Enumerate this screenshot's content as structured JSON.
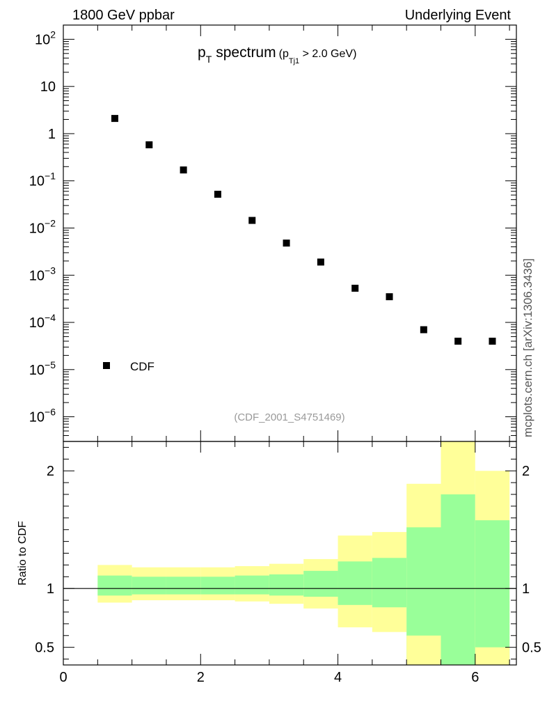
{
  "header": {
    "left": "1800 GeV ppbar",
    "right": "Underlying Event"
  },
  "side_label": "mcplots.cern.ch [arXiv:1306.3436]",
  "analysis_id": "(CDF_2001_S4751469)",
  "main_title": {
    "p": "p",
    "sub_t": "T",
    "word": "spectrum",
    "cut_open": "(p",
    "cut_sub": "Tj1",
    "cut_rest": " > 2.0 GeV)"
  },
  "chart_data": [
    {
      "type": "scatter",
      "name": "main",
      "y_scale": "log",
      "xlim": [
        0,
        6.6
      ],
      "ylim": [
        3e-07,
        200
      ],
      "y_ticks": [
        {
          "value": 100,
          "mantissa": "10",
          "exp": "2"
        },
        {
          "value": 10,
          "mantissa": "10",
          "exp": ""
        },
        {
          "value": 1,
          "mantissa": "1",
          "exp": ""
        },
        {
          "value": 0.1,
          "mantissa": "10",
          "exp": "−1"
        },
        {
          "value": 0.01,
          "mantissa": "10",
          "exp": "−2"
        },
        {
          "value": 0.001,
          "mantissa": "10",
          "exp": "−3"
        },
        {
          "value": 0.0001,
          "mantissa": "10",
          "exp": "−4"
        },
        {
          "value": 1e-05,
          "mantissa": "10",
          "exp": "−5"
        },
        {
          "value": 1e-06,
          "mantissa": "10",
          "exp": "−6"
        }
      ],
      "legend": {
        "placement": "bottom-left",
        "entries": [
          "CDF"
        ]
      },
      "series": [
        {
          "name": "CDF",
          "x": [
            0.75,
            1.25,
            1.75,
            2.25,
            2.75,
            3.25,
            3.75,
            4.25,
            4.75,
            5.25,
            5.75,
            6.25
          ],
          "y": [
            2.1,
            0.58,
            0.17,
            0.052,
            0.0145,
            0.0048,
            0.0019,
            0.00053,
            0.00035,
            7e-05,
            4e-05,
            4e-05
          ]
        }
      ]
    },
    {
      "type": "area",
      "name": "ratio",
      "ylabel": "Ratio to CDF",
      "xlim": [
        0,
        6.6
      ],
      "ylim": [
        0.35,
        2.25
      ],
      "x_ticks": [
        0,
        2,
        4,
        6
      ],
      "y_ticks": [
        0.5,
        1,
        2
      ],
      "reference_line": 1,
      "bins": [
        {
          "x0": 0.5,
          "x1": 1.0,
          "inner": [
            0.94,
            1.11
          ],
          "outer": [
            0.88,
            1.2
          ]
        },
        {
          "x0": 1.0,
          "x1": 1.5,
          "inner": [
            0.95,
            1.1
          ],
          "outer": [
            0.9,
            1.18
          ]
        },
        {
          "x0": 1.5,
          "x1": 2.0,
          "inner": [
            0.95,
            1.1
          ],
          "outer": [
            0.9,
            1.18
          ]
        },
        {
          "x0": 2.0,
          "x1": 2.5,
          "inner": [
            0.95,
            1.1
          ],
          "outer": [
            0.9,
            1.18
          ]
        },
        {
          "x0": 2.5,
          "x1": 3.0,
          "inner": [
            0.95,
            1.11
          ],
          "outer": [
            0.89,
            1.19
          ]
        },
        {
          "x0": 3.0,
          "x1": 3.5,
          "inner": [
            0.94,
            1.12
          ],
          "outer": [
            0.87,
            1.21
          ]
        },
        {
          "x0": 3.5,
          "x1": 4.0,
          "inner": [
            0.93,
            1.15
          ],
          "outer": [
            0.83,
            1.25
          ]
        },
        {
          "x0": 4.0,
          "x1": 4.5,
          "inner": [
            0.86,
            1.23
          ],
          "outer": [
            0.67,
            1.45
          ]
        },
        {
          "x0": 4.5,
          "x1": 5.0,
          "inner": [
            0.84,
            1.26
          ],
          "outer": [
            0.63,
            1.48
          ]
        },
        {
          "x0": 5.0,
          "x1": 5.5,
          "inner": [
            0.35,
            1.52
          ],
          "outer": [
            0.35,
            1.89
          ],
          "outer_low_break": 0.6
        },
        {
          "x0": 5.5,
          "x1": 6.0,
          "inner": [
            0.35,
            1.8
          ],
          "outer": [
            0.35,
            2.25
          ]
        },
        {
          "x0": 6.0,
          "x1": 6.5,
          "inner": [
            0.35,
            1.58
          ],
          "outer": [
            0.35,
            2.0
          ],
          "outer_low_break": 0.5
        }
      ],
      "colors": {
        "inner": "#99ff99",
        "outer": "#ffff99"
      }
    }
  ]
}
